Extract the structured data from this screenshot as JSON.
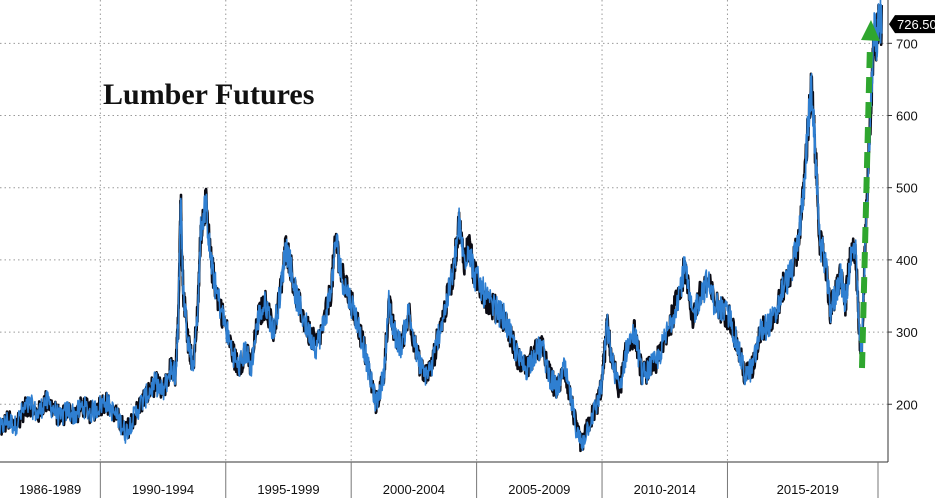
{
  "chart_data": {
    "type": "line",
    "title": "Lumber Futures",
    "xlabel": "",
    "ylabel": "",
    "ylim": [
      120,
      760
    ],
    "grid": true,
    "y_ticks": [
      200,
      300,
      400,
      500,
      600,
      700
    ],
    "x_ticks": [
      "1986-1989",
      "1990-1994",
      "1995-1999",
      "2000-2004",
      "2005-2009",
      "2010-2014",
      "2015-2019"
    ],
    "x_tick_start_years": [
      1986,
      1990,
      1995,
      2000,
      2005,
      2010,
      2015
    ],
    "x_range_years": [
      1986,
      2021.4
    ],
    "last_value": 726.5,
    "last_value_label": "726.50",
    "annotation": "upward-trend-arrow",
    "series": [
      {
        "color_dark": "#0b0b14",
        "color_light": "#2f7fd1",
        "points": [
          [
            1986.0,
            165
          ],
          [
            1986.3,
            178
          ],
          [
            1986.6,
            170
          ],
          [
            1986.9,
            190
          ],
          [
            1987.2,
            200
          ],
          [
            1987.5,
            185
          ],
          [
            1987.8,
            205
          ],
          [
            1988.1,
            195
          ],
          [
            1988.4,
            180
          ],
          [
            1988.7,
            192
          ],
          [
            1989.0,
            185
          ],
          [
            1989.3,
            198
          ],
          [
            1989.6,
            188
          ],
          [
            1989.9,
            196
          ],
          [
            1990.2,
            205
          ],
          [
            1990.5,
            190
          ],
          [
            1990.8,
            175
          ],
          [
            1991.0,
            160
          ],
          [
            1991.3,
            180
          ],
          [
            1991.6,
            200
          ],
          [
            1991.9,
            215
          ],
          [
            1992.2,
            230
          ],
          [
            1992.5,
            215
          ],
          [
            1992.8,
            250
          ],
          [
            1993.0,
            240
          ],
          [
            1993.1,
            310
          ],
          [
            1993.2,
            490
          ],
          [
            1993.3,
            360
          ],
          [
            1993.5,
            290
          ],
          [
            1993.7,
            250
          ],
          [
            1993.9,
            340
          ],
          [
            1994.0,
            440
          ],
          [
            1994.2,
            480
          ],
          [
            1994.4,
            400
          ],
          [
            1994.6,
            360
          ],
          [
            1994.9,
            320
          ],
          [
            1995.2,
            280
          ],
          [
            1995.5,
            250
          ],
          [
            1995.8,
            275
          ],
          [
            1996.0,
            250
          ],
          [
            1996.3,
            320
          ],
          [
            1996.6,
            340
          ],
          [
            1996.9,
            300
          ],
          [
            1997.2,
            360
          ],
          [
            1997.4,
            420
          ],
          [
            1997.6,
            390
          ],
          [
            1997.8,
            350
          ],
          [
            1998.0,
            330
          ],
          [
            1998.3,
            300
          ],
          [
            1998.6,
            280
          ],
          [
            1998.9,
            310
          ],
          [
            1999.2,
            360
          ],
          [
            1999.4,
            430
          ],
          [
            1999.6,
            380
          ],
          [
            1999.9,
            350
          ],
          [
            2000.2,
            320
          ],
          [
            2000.5,
            280
          ],
          [
            2000.8,
            230
          ],
          [
            2001.0,
            200
          ],
          [
            2001.3,
            240
          ],
          [
            2001.5,
            340
          ],
          [
            2001.7,
            300
          ],
          [
            2002.0,
            280
          ],
          [
            2002.3,
            330
          ],
          [
            2002.6,
            270
          ],
          [
            2002.9,
            240
          ],
          [
            2003.2,
            250
          ],
          [
            2003.5,
            300
          ],
          [
            2003.8,
            340
          ],
          [
            2004.1,
            390
          ],
          [
            2004.3,
            450
          ],
          [
            2004.5,
            400
          ],
          [
            2004.7,
            420
          ],
          [
            2004.9,
            380
          ],
          [
            2005.2,
            360
          ],
          [
            2005.5,
            340
          ],
          [
            2005.8,
            330
          ],
          [
            2006.1,
            320
          ],
          [
            2006.4,
            290
          ],
          [
            2006.7,
            260
          ],
          [
            2007.0,
            250
          ],
          [
            2007.3,
            270
          ],
          [
            2007.6,
            280
          ],
          [
            2007.9,
            240
          ],
          [
            2008.2,
            220
          ],
          [
            2008.5,
            250
          ],
          [
            2008.8,
            200
          ],
          [
            2009.0,
            160
          ],
          [
            2009.2,
            145
          ],
          [
            2009.5,
            175
          ],
          [
            2009.8,
            200
          ],
          [
            2010.0,
            230
          ],
          [
            2010.2,
            310
          ],
          [
            2010.4,
            260
          ],
          [
            2010.7,
            220
          ],
          [
            2011.0,
            280
          ],
          [
            2011.3,
            300
          ],
          [
            2011.6,
            240
          ],
          [
            2011.9,
            250
          ],
          [
            2012.2,
            260
          ],
          [
            2012.5,
            290
          ],
          [
            2012.8,
            320
          ],
          [
            2013.1,
            360
          ],
          [
            2013.3,
            390
          ],
          [
            2013.6,
            320
          ],
          [
            2013.9,
            350
          ],
          [
            2014.2,
            370
          ],
          [
            2014.5,
            340
          ],
          [
            2014.8,
            330
          ],
          [
            2015.1,
            320
          ],
          [
            2015.4,
            280
          ],
          [
            2015.7,
            240
          ],
          [
            2016.0,
            250
          ],
          [
            2016.3,
            300
          ],
          [
            2016.6,
            310
          ],
          [
            2016.9,
            320
          ],
          [
            2017.2,
            360
          ],
          [
            2017.5,
            380
          ],
          [
            2017.8,
            420
          ],
          [
            2018.0,
            480
          ],
          [
            2018.2,
            580
          ],
          [
            2018.35,
            640
          ],
          [
            2018.5,
            550
          ],
          [
            2018.7,
            420
          ],
          [
            2018.9,
            400
          ],
          [
            2019.1,
            330
          ],
          [
            2019.3,
            350
          ],
          [
            2019.5,
            380
          ],
          [
            2019.7,
            340
          ],
          [
            2019.9,
            400
          ],
          [
            2020.1,
            420
          ],
          [
            2020.25,
            300
          ],
          [
            2020.35,
            270
          ],
          [
            2020.45,
            380
          ],
          [
            2020.6,
            520
          ],
          [
            2020.75,
            640
          ],
          [
            2020.85,
            720
          ],
          [
            2020.95,
            700
          ],
          [
            2021.05,
            740
          ],
          [
            2021.15,
            726.5
          ]
        ]
      }
    ]
  }
}
